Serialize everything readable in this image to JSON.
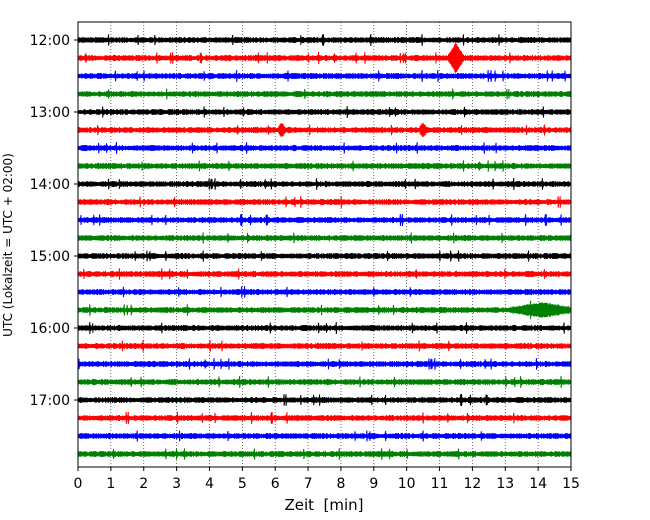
{
  "chart_data": {
    "type": "line",
    "subtype": "helicorder",
    "title": "",
    "xlabel": "Zeit  [min]",
    "ylabel": "UTC (Lokalzeit = UTC + 02:00)",
    "xlim": [
      0,
      15
    ],
    "x_ticks": [
      "0",
      "1",
      "2",
      "3",
      "4",
      "5",
      "6",
      "7",
      "8",
      "9",
      "10",
      "11",
      "12",
      "13",
      "14",
      "15"
    ],
    "y_tick_labels": [
      "12:00",
      "13:00",
      "14:00",
      "15:00",
      "16:00",
      "17:00"
    ],
    "trace_start_times": [
      "12:00",
      "12:15",
      "12:30",
      "12:45",
      "13:00",
      "13:15",
      "13:30",
      "13:45",
      "14:00",
      "14:15",
      "14:30",
      "14:45",
      "15:00",
      "15:15",
      "15:30",
      "15:45",
      "16:00",
      "16:15",
      "16:30",
      "16:45",
      "17:00",
      "17:15",
      "17:30",
      "17:45"
    ],
    "trace_colors": [
      "#000000",
      "#ff0000",
      "#0000ff",
      "#008000"
    ],
    "grid": "vertical-dotted",
    "events": [
      {
        "trace": 1,
        "minute": 11.5,
        "note": "large spike"
      },
      {
        "trace": 5,
        "minute": 6.2,
        "note": "spike"
      },
      {
        "trace": 5,
        "minute": 10.5,
        "note": "spike"
      },
      {
        "trace": 15,
        "minute": 14.1,
        "note": "burst"
      }
    ]
  }
}
